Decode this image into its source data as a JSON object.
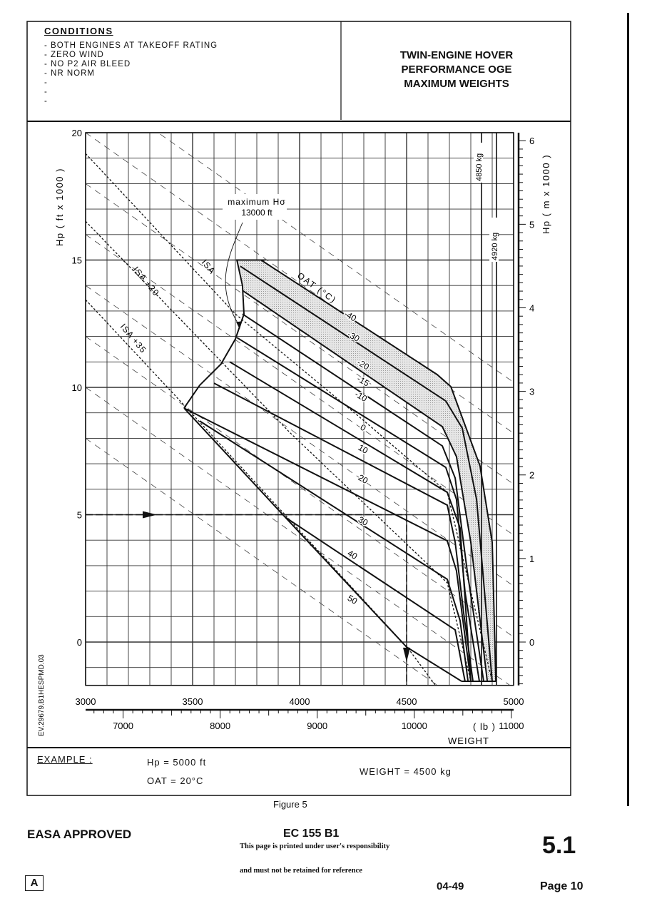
{
  "conditions": {
    "heading": "CONDITIONS",
    "items": [
      "- BOTH ENGINES AT TAKEOFF RATING",
      "- ZERO WIND",
      "- NO P2 AIR BLEED",
      "- NR NORM",
      "-",
      "-",
      "-"
    ]
  },
  "title_lines": [
    "TWIN-ENGINE HOVER",
    "PERFORMANCE OGE",
    "MAXIMUM WEIGHTS"
  ],
  "chart_data": {
    "type": "line",
    "title": "TWIN-ENGINE HOVER PERFORMANCE OGE MAXIMUM WEIGHTS",
    "xlabel": "WEIGHT",
    "x_unit_label": "( lb )",
    "ylabel": "Hp ( ft x 1000 )",
    "ylabel_right": "Hp ( m x 1000 )",
    "xlim_kg": [
      3000,
      5000
    ],
    "ylim_ft": [
      -1700,
      20000
    ],
    "x_ticks_kg": [
      3000,
      3500,
      4000,
      4500,
      5000
    ],
    "x_ticks_lb": [
      7000,
      8000,
      9000,
      10000,
      11000
    ],
    "y_ticks_ft_x1000": [
      0,
      5,
      10,
      15,
      20
    ],
    "y_ticks_m_x1000": [
      0,
      1,
      2,
      3,
      4,
      5,
      6
    ],
    "grid": true,
    "oat_label": "OAT (°C)",
    "series": [
      {
        "name": "-40",
        "points": [
          [
            3820,
            15000
          ],
          [
            4643,
            10500
          ],
          [
            4707,
            10024
          ],
          [
            4843,
            6916
          ],
          [
            4900,
            3920
          ],
          [
            4917,
            -1540
          ]
        ]
      },
      {
        "name": "-30",
        "points": [
          [
            3723,
            14756
          ],
          [
            4683,
            9464
          ],
          [
            4760,
            8400
          ],
          [
            4827,
            5600
          ],
          [
            4900,
            -1540
          ]
        ]
      },
      {
        "name": "-20",
        "points": [
          [
            3733,
            13804
          ],
          [
            4667,
            8456
          ],
          [
            4733,
            7280
          ],
          [
            4800,
            3920
          ],
          [
            4877,
            -1540
          ]
        ]
      },
      {
        "name": "-15",
        "points": [
          [
            3733,
            12880
          ],
          [
            4667,
            7700
          ],
          [
            4727,
            6440
          ],
          [
            4783,
            2800
          ],
          [
            4860,
            -1540
          ]
        ]
      },
      {
        "name": "-10",
        "points": [
          [
            3707,
            11956
          ],
          [
            4683,
            6860
          ],
          [
            4733,
            5600
          ],
          [
            4773,
            1960
          ],
          [
            4840,
            -1540
          ]
        ]
      },
      {
        "name": "0",
        "points": [
          [
            3673,
            11004
          ],
          [
            4690,
            5880
          ],
          [
            4750,
            4480
          ],
          [
            4800,
            -1540
          ]
        ]
      },
      {
        "name": "10",
        "points": [
          [
            3600,
            10164
          ],
          [
            4690,
            5376
          ],
          [
            4727,
            3920
          ],
          [
            4767,
            1120
          ],
          [
            4810,
            -1540
          ]
        ]
      },
      {
        "name": "20",
        "points": [
          [
            3460,
            9184
          ],
          [
            4690,
            3976
          ],
          [
            4733,
            2800
          ],
          [
            4800,
            -1540
          ]
        ]
      },
      {
        "name": "30",
        "points": [
          [
            3533,
            8680
          ],
          [
            4690,
            2464
          ],
          [
            4750,
            840
          ],
          [
            4787,
            -1540
          ]
        ]
      },
      {
        "name": "40",
        "points": [
          [
            3933,
            4900
          ],
          [
            4727,
            476
          ],
          [
            4773,
            -1540
          ]
        ]
      },
      {
        "name": "50",
        "points": [
          [
            3460,
            9184
          ],
          [
            3933,
            4900
          ],
          [
            4500,
            -196
          ],
          [
            4757,
            -1540
          ]
        ]
      }
    ],
    "envelope": {
      "name": "maximum Hσ",
      "points": [
        [
          3840,
          15000
        ],
        [
          3707,
          15000
        ],
        [
          3733,
          14000
        ],
        [
          3740,
          12880
        ],
        [
          3700,
          11900
        ],
        [
          3633,
          10920
        ],
        [
          3533,
          10080
        ],
        [
          3460,
          9184
        ]
      ],
      "bottom": [
        [
          4757,
          -1540
        ],
        [
          4917,
          -1540
        ]
      ]
    },
    "isa_lines": [
      {
        "name": "ISA",
        "points": [
          [
            3000,
            19180
          ],
          [
            3700,
            12880
          ],
          [
            4290,
            8764
          ],
          [
            4690,
            5880
          ],
          [
            4900,
            -1540
          ]
        ]
      },
      {
        "name": "ISA +20",
        "points": [
          [
            3000,
            16520
          ],
          [
            3957,
            8204
          ],
          [
            4690,
            2324
          ],
          [
            4800,
            -1540
          ]
        ]
      },
      {
        "name": "ISA +35",
        "points": [
          [
            3000,
            13440
          ],
          [
            3467,
            9240
          ],
          [
            4510,
            -280
          ],
          [
            4633,
            -1680
          ]
        ]
      }
    ],
    "guide_lines": [
      [
        [
          3000,
          22000
        ],
        [
          5000,
          10200
        ]
      ],
      [
        [
          3000,
          20000
        ],
        [
          5000,
          8200
        ]
      ],
      [
        [
          3000,
          18000
        ],
        [
          5000,
          6200
        ]
      ],
      [
        [
          3000,
          16000
        ],
        [
          5000,
          4200
        ]
      ],
      [
        [
          3000,
          14000
        ],
        [
          5000,
          2200
        ]
      ],
      [
        [
          3000,
          12000
        ],
        [
          5000,
          200
        ]
      ],
      [
        [
          3000,
          10000
        ],
        [
          5000,
          -1800
        ]
      ],
      [
        [
          3000,
          8000
        ],
        [
          5000,
          -3800
        ]
      ]
    ],
    "weight_limits": [
      {
        "label": "4850 kg",
        "weight_kg": 4850
      },
      {
        "label": "4920 kg",
        "weight_kg": 4920
      }
    ],
    "annotation": {
      "line1": "maximum Hσ",
      "line2": "13000 ft",
      "target": [
        3720,
        12400
      ]
    },
    "example": {
      "hp_ft": 5000,
      "oat_c": 20,
      "weight_kg": 4500
    }
  },
  "example": {
    "label": "EXAMPLE :",
    "hp": "Hp = 5000 ft",
    "oat": "OAT = 20°C",
    "weight": "WEIGHT = 4500 kg"
  },
  "figure_caption": "Figure 5",
  "side_code": "EV.29679.B1HESPMD.03",
  "footer": {
    "approval": "EASA APPROVED",
    "model": "EC 155 B1",
    "notice1": "This page is printed under user's responsibility",
    "notice2": "and must not be retained for reference",
    "section": "5.1",
    "revision_box": "A",
    "date": "04-49",
    "page": "Page 10"
  }
}
